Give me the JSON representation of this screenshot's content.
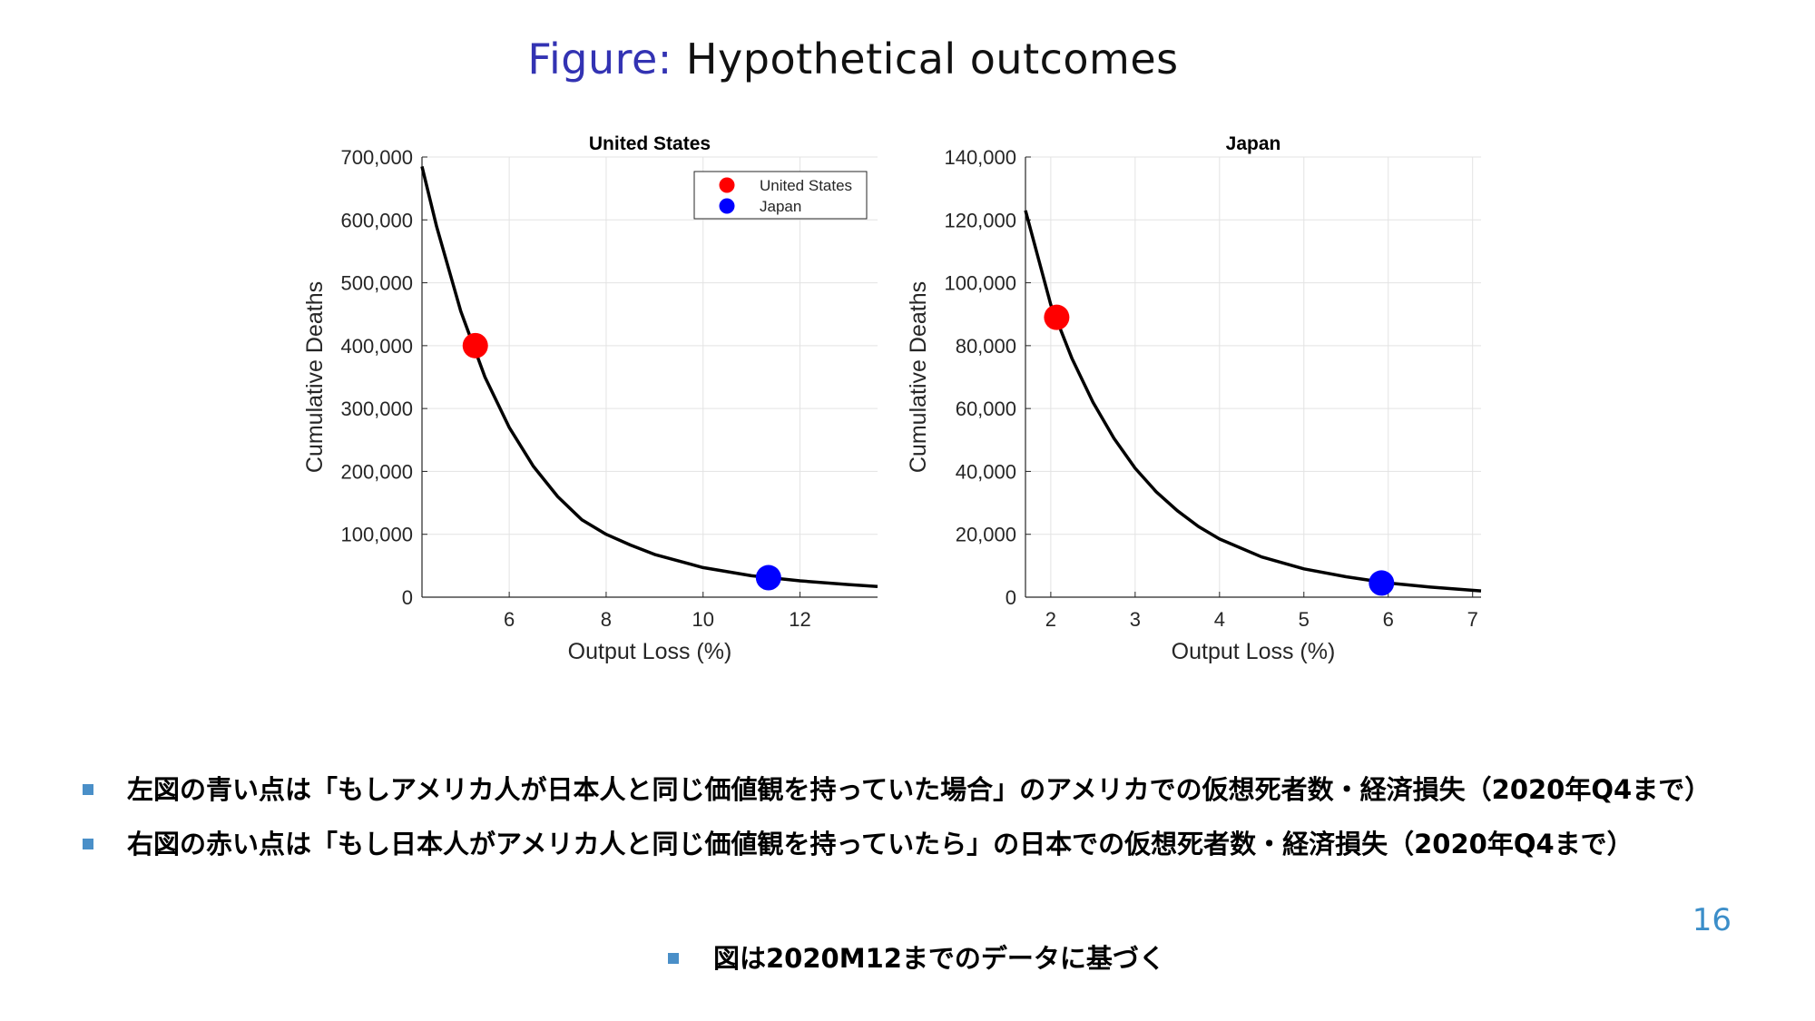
{
  "slide": {
    "title_lead": "Figure:",
    "title_rest": " Hypothetical outcomes",
    "page_number": "16"
  },
  "colors": {
    "us": "#ff0000",
    "japan": "#0000ff",
    "curve": "#000000",
    "title_accent": "#3333b3",
    "bullet": "#4a8fc8"
  },
  "bullets": [
    "左図の青い点は「もしアメリカ人が日本人と同じ価値観を持っていた場合」のアメリカでの仮想死者数・経済損失（2020年Q4まで）",
    "右図の赤い点は「もし日本人がアメリカ人と同じ価値観を持っていたら」の日本での仮想死者数・経済損失（2020年Q4まで）"
  ],
  "sub_bullet": "図は2020M12までのデータに基づく",
  "chart_data": [
    {
      "type": "line",
      "title": "United States",
      "xlabel": "Output Loss (%)",
      "ylabel": "Cumulative Deaths",
      "xlim": [
        4.2,
        13.6
      ],
      "ylim": [
        0,
        700000
      ],
      "xticks": [
        6,
        8,
        10,
        12
      ],
      "yticks": [
        0,
        100000,
        200000,
        300000,
        400000,
        500000,
        600000,
        700000
      ],
      "ytick_labels": [
        "0",
        "100,000",
        "200,000",
        "300,000",
        "400,000",
        "500,000",
        "600,000",
        "700,000"
      ],
      "grid": true,
      "legend": {
        "placement": "top-right",
        "entries": [
          {
            "label": "United States",
            "color": "#ff0000"
          },
          {
            "label": "Japan",
            "color": "#0000ff"
          }
        ]
      },
      "curve": {
        "x": [
          4.2,
          4.5,
          5.0,
          5.5,
          6.0,
          6.5,
          7.0,
          7.5,
          8.0,
          8.5,
          9.0,
          10.0,
          11.0,
          12.0,
          13.0,
          13.6
        ],
        "y": [
          685000,
          590000,
          455000,
          350000,
          270000,
          208000,
          160000,
          123000,
          100000,
          83000,
          68000,
          47000,
          34000,
          26000,
          20000,
          17000
        ]
      },
      "points": [
        {
          "label": "United States",
          "x": 5.3,
          "y": 400000,
          "color": "#ff0000"
        },
        {
          "label": "Japan",
          "x": 11.35,
          "y": 31000,
          "color": "#0000ff"
        }
      ]
    },
    {
      "type": "line",
      "title": "Japan",
      "xlabel": "Output Loss (%)",
      "ylabel": "Cumulative Deaths",
      "xlim": [
        1.7,
        7.1
      ],
      "ylim": [
        0,
        140000
      ],
      "xticks": [
        2,
        3,
        4,
        5,
        6,
        7
      ],
      "yticks": [
        0,
        20000,
        40000,
        60000,
        80000,
        100000,
        120000,
        140000
      ],
      "ytick_labels": [
        "0",
        "20,000",
        "40,000",
        "60,000",
        "80,000",
        "100,000",
        "120,000",
        "140,000"
      ],
      "grid": true,
      "curve": {
        "x": [
          1.7,
          2.0,
          2.25,
          2.5,
          2.75,
          3.0,
          3.25,
          3.5,
          3.75,
          4.0,
          4.5,
          5.0,
          5.5,
          6.0,
          6.5,
          7.1
        ],
        "y": [
          123000,
          93000,
          76000,
          62000,
          50500,
          41000,
          33500,
          27500,
          22500,
          18500,
          12800,
          9000,
          6500,
          4500,
          3200,
          2000
        ]
      },
      "points": [
        {
          "label": "United States",
          "x": 2.07,
          "y": 89000,
          "color": "#ff0000"
        },
        {
          "label": "Japan",
          "x": 5.92,
          "y": 4500,
          "color": "#0000ff"
        }
      ]
    }
  ]
}
